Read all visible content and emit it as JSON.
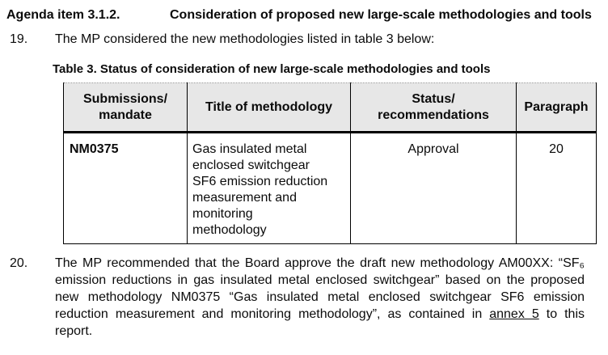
{
  "colors": {
    "page_background": "#ffffff",
    "text": "#0b0b0b",
    "table_header_background": "#e7e7e7",
    "table_border": "#000000"
  },
  "agenda": {
    "label": "Agenda item 3.1.2.",
    "title": "Consideration of proposed new large-scale methodologies and tools"
  },
  "paragraphs": {
    "p19": {
      "number": "19.",
      "text": "The MP considered the new methodologies listed in table 3 below:"
    },
    "p20": {
      "number": "20.",
      "text_before_annex": "The MP recommended that the Board approve the draft new methodology AM00XX: “SF₆ emission reductions in gas insulated metal enclosed switchgear” based on the proposed new methodology NM0375 “Gas insulated metal enclosed switchgear SF6 emission reduction measurement and monitoring methodology”, as contained in ",
      "annex_link": "annex 5",
      "text_after_annex": " to this report."
    }
  },
  "table": {
    "caption": "Table 3. Status of consideration of new large-scale methodologies and tools",
    "headers": [
      "Submissions/\nmandate",
      "Title of methodology",
      "Status/\nrecommendations",
      "Paragraph"
    ],
    "rows": [
      {
        "submissions": "NM0375",
        "title": "Gas insulated metal enclosed switchgear SF6 emission reduction measurement and monitoring methodology",
        "status": "Approval",
        "paragraph": "20"
      }
    ]
  }
}
